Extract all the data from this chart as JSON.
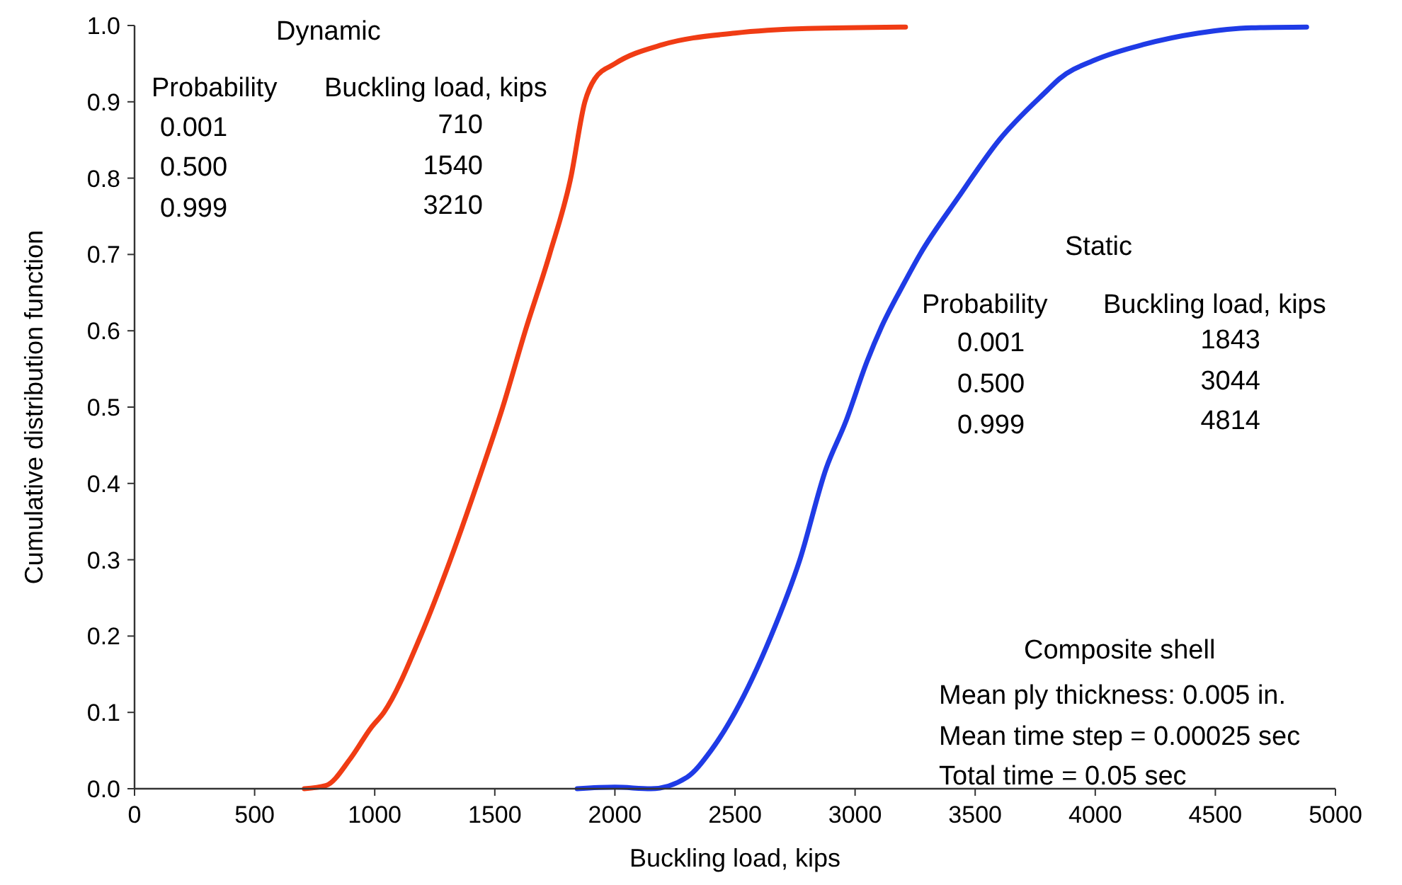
{
  "chart_data": {
    "type": "line",
    "xlabel": "Buckling load, kips",
    "ylabel": "Cumulative distribution function",
    "xlim": [
      0,
      5000
    ],
    "xticks": [
      0,
      500,
      1000,
      1500,
      2000,
      2500,
      3000,
      3500,
      4000,
      4500,
      5000
    ],
    "ylim": [
      0,
      1
    ],
    "yticks": [
      {
        "value": 0,
        "label": "0.0"
      },
      0.1,
      0.2,
      0.3,
      0.4,
      0.5,
      0.6,
      0.7,
      0.8,
      0.9,
      {
        "value": 1,
        "label": "1.0"
      }
    ],
    "grid": false,
    "marker": "none",
    "line_style": "solid",
    "series": [
      {
        "color": "#f03c14",
        "x": [
          707,
          796,
          900,
          985,
          1038,
          1191,
          1315,
          1427,
          1533,
          1627,
          1728,
          1816,
          1875,
          1916,
          2000,
          2200,
          2500,
          2800,
          3210
        ],
        "values": [
          0,
          0.004,
          0.04,
          0.08,
          0.1,
          0.2,
          0.3,
          0.4,
          0.5,
          0.6,
          0.7,
          0.8,
          0.9,
          0.93,
          0.95,
          0.975,
          0.99,
          0.996,
          0.998
        ]
      },
      {
        "color": "#1f3be6",
        "x": [
          1843,
          2000,
          2150,
          2300,
          2400,
          2500,
          2650,
          2770,
          2880,
          2960,
          3050,
          3110,
          3200,
          3270,
          3430,
          3600,
          3800,
          3850,
          4000,
          4200,
          4430,
          4650,
          4880
        ],
        "values": [
          0,
          0.002,
          0,
          0.015,
          0.05,
          0.1,
          0.2,
          0.3,
          0.42,
          0.48,
          0.56,
          0.605,
          0.66,
          0.7,
          0.775,
          0.85,
          0.915,
          0.93,
          0.955,
          0.975,
          0.99,
          0.997,
          0.998
        ]
      }
    ],
    "annotations": [
      "Dynamic",
      "Probability",
      "Buckling load, kips",
      "0.001",
      "710",
      "0.500",
      "1540",
      "0.999",
      "3210",
      "Static",
      "Probability",
      "Buckling load, kips",
      "0.001",
      "1843",
      "0.500",
      "3044",
      "0.999",
      "4814",
      "Composite shell",
      "Mean ply thickness: 0.005 in.",
      "Mean time step = 0.00025 sec",
      "Total time = 0.05 sec"
    ]
  }
}
